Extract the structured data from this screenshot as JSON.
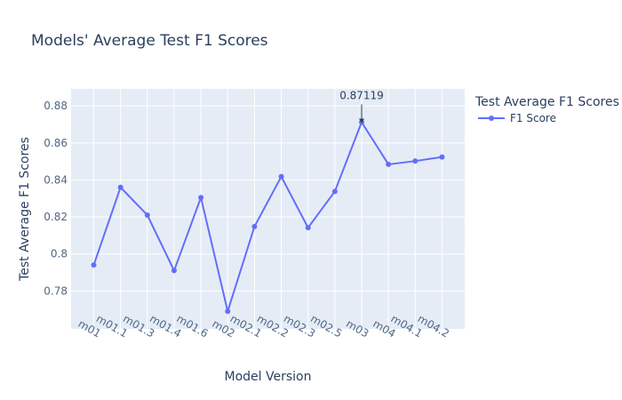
{
  "chart_data": {
    "type": "line",
    "title": "Models' Average Test F1 Scores",
    "xlabel": "Model Version",
    "ylabel": "Test Average F1 Scores",
    "categories": [
      "m01",
      "m01.1",
      "m01.3",
      "m01.4",
      "m01.6",
      "m02",
      "m02.1",
      "m02.2",
      "m02.3",
      "m02.5",
      "m03",
      "m04",
      "m04.1",
      "m04.2"
    ],
    "series": [
      {
        "name": "F1 Score",
        "values": [
          0.794,
          0.836,
          0.821,
          0.791,
          0.8305,
          0.769,
          0.8148,
          0.8418,
          0.8142,
          0.8338,
          0.87119,
          0.8484,
          0.8502,
          0.8524
        ]
      }
    ],
    "ylim": [
      0.7595,
      0.8892
    ],
    "yticks": [
      0.78,
      0.8,
      0.82,
      0.84,
      0.86,
      0.88
    ],
    "ytick_labels": [
      "0.78",
      "0.8",
      "0.82",
      "0.84",
      "0.86",
      "0.88"
    ],
    "legend": {
      "title": "Test Average F1 Scores",
      "position": "right"
    },
    "annotation": {
      "text": "0.87119",
      "category": "m03",
      "value": 0.87119
    },
    "grid": true,
    "colors": {
      "line": "#636efa",
      "plot_bg": "#e5ecf6",
      "grid": "#ffffff"
    }
  }
}
